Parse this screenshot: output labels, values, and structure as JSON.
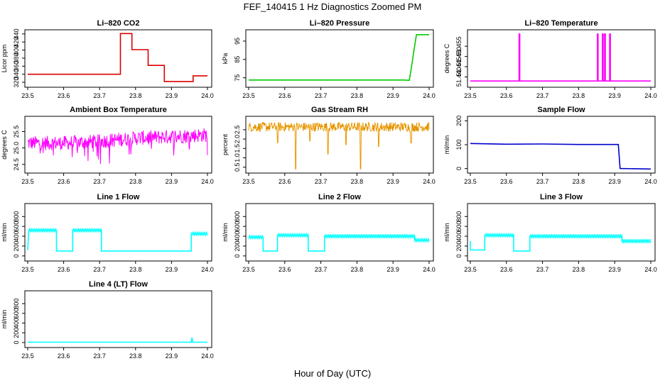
{
  "figure": {
    "title": "FEF_140415  1 Hz Diagnostics Zoomed PM",
    "xlabel": "Hour of Day (UTC)"
  },
  "chart_data": [
    {
      "type": "line",
      "title": "Li–820 CO2",
      "xlabel": "",
      "ylabel": "Licor ppm",
      "color": "#dd0000",
      "xlim": [
        23.5,
        24.0
      ],
      "ylim": [
        313,
        445
      ],
      "xticks": [
        "23.5",
        "23.6",
        "23.7",
        "23.8",
        "23.9",
        "24.0"
      ],
      "yticks": [
        "320",
        "340",
        "360",
        "380",
        "400",
        "420",
        "440"
      ],
      "x": [
        23.5,
        23.758,
        23.758,
        23.79,
        23.79,
        23.835,
        23.835,
        23.88,
        23.88,
        23.96,
        23.96,
        24.0
      ],
      "y": [
        340,
        340,
        441,
        441,
        401,
        401,
        362,
        362,
        322,
        322,
        336,
        336
      ]
    },
    {
      "type": "line",
      "title": "Li–820 Pressure",
      "xlabel": "",
      "ylabel": "kPa",
      "color": "#00cc00",
      "xlim": [
        23.5,
        24.0
      ],
      "ylim": [
        71,
        100
      ],
      "xticks": [
        "23.5",
        "23.6",
        "23.7",
        "23.8",
        "23.9",
        "24.0"
      ],
      "yticks": [
        "75",
        "85",
        "95"
      ],
      "x": [
        23.5,
        23.93,
        23.945,
        23.952,
        23.958,
        23.962,
        23.965,
        24.0
      ],
      "y": [
        73.8,
        73.8,
        73.6,
        82,
        90,
        95,
        98.5,
        98.5
      ]
    },
    {
      "type": "line",
      "title": "Li–820 Temperature",
      "xlabel": "",
      "ylabel": "degrees C",
      "color": "#ff00ff",
      "xlim": [
        23.5,
        24.0
      ],
      "ylim": [
        51.436,
        51.462
      ],
      "xticks": [
        "23.5",
        "23.6",
        "23.7",
        "23.8",
        "23.9",
        "24.0"
      ],
      "yticks": [
        "51.440",
        "51.445",
        "51.450",
        "51.455"
      ],
      "x": [
        23.5,
        23.635,
        23.635,
        23.637,
        23.637,
        23.852,
        23.852,
        23.854,
        23.854,
        23.866,
        23.866,
        23.868,
        23.868,
        23.872,
        23.872,
        23.874,
        23.874,
        23.886,
        23.886,
        23.888,
        23.888,
        24.0
      ],
      "y": [
        51.438,
        51.438,
        51.461,
        51.461,
        51.438,
        51.438,
        51.461,
        51.461,
        51.438,
        51.438,
        51.461,
        51.461,
        51.438,
        51.438,
        51.461,
        51.461,
        51.438,
        51.438,
        51.461,
        51.461,
        51.438,
        51.438
      ]
    },
    {
      "type": "line",
      "title": "Ambient Box Temperature",
      "xlabel": "",
      "ylabel": "degrees C",
      "color": "#ff00ff",
      "xlim": [
        23.5,
        24.0
      ],
      "ylim": [
        24.3,
        25.9
      ],
      "xticks": [
        "23.5",
        "23.6",
        "23.7",
        "23.8",
        "23.9",
        "24.0"
      ],
      "yticks": [
        "24.5",
        "25.0",
        "25.5"
      ],
      "x": [
        23.5,
        23.6,
        23.7,
        23.8,
        23.9,
        24.0
      ],
      "y": [
        25.15,
        25.15,
        25.2,
        25.3,
        25.35,
        25.4
      ],
      "noise": 0.22
    },
    {
      "type": "line",
      "title": "Gas Stream RH",
      "xlabel": "",
      "ylabel": "percent",
      "color": "#ffa500",
      "xlim": [
        23.5,
        24.0
      ],
      "ylim": [
        0.3,
        3.1
      ],
      "xticks": [
        "23.5",
        "23.6",
        "23.7",
        "23.8",
        "23.9",
        "24.0"
      ],
      "yticks": [
        "0.5",
        "1.0",
        "1.5",
        "2.0",
        "2.5"
      ],
      "x": [
        23.5,
        23.63,
        23.63,
        23.72,
        23.72,
        23.81,
        23.81,
        24.0
      ],
      "y": [
        2.65,
        2.65,
        0.4,
        2.65,
        1.2,
        2.65,
        0.4,
        2.65
      ],
      "noise": 0.25
    },
    {
      "type": "line",
      "title": "Sample Flow",
      "xlabel": "",
      "ylabel": "ml/min",
      "color": "#0000cc",
      "xlim": [
        23.5,
        24.0
      ],
      "ylim": [
        -10,
        210
      ],
      "xticks": [
        "23.5",
        "23.6",
        "23.7",
        "23.8",
        "23.9",
        "24.0"
      ],
      "yticks": [
        "0",
        "100",
        "200"
      ],
      "x": [
        23.5,
        23.6,
        23.7,
        23.8,
        23.91,
        23.915,
        24.0
      ],
      "y": [
        105,
        102,
        103,
        101,
        101,
        0,
        -2
      ]
    },
    {
      "type": "line",
      "title": "Line 1 Flow",
      "xlabel": "",
      "ylabel": "ml/min",
      "color": "#00ffff",
      "xlim": [
        23.5,
        24.0
      ],
      "ylim": [
        -60,
        1020
      ],
      "xticks": [
        "23.5",
        "23.6",
        "23.7",
        "23.8",
        "23.9",
        "24.0"
      ],
      "yticks": [
        "0",
        "200",
        "400",
        "600",
        "800"
      ],
      "x": [
        23.5,
        23.503,
        23.58,
        23.58,
        23.625,
        23.625,
        23.705,
        23.705,
        23.955,
        23.955,
        24.0
      ],
      "y": [
        120,
        520,
        520,
        100,
        100,
        520,
        520,
        100,
        100,
        450,
        450
      ]
    },
    {
      "type": "line",
      "title": "Line 2 Flow",
      "xlabel": "",
      "ylabel": "ml/min",
      "color": "#00ffff",
      "xlim": [
        23.5,
        24.0
      ],
      "ylim": [
        -60,
        1020
      ],
      "xticks": [
        "23.5",
        "23.6",
        "23.7",
        "23.8",
        "23.9",
        "24.0"
      ],
      "yticks": [
        "0",
        "200",
        "400",
        "600",
        "800"
      ],
      "x": [
        23.5,
        23.54,
        23.54,
        23.58,
        23.58,
        23.665,
        23.665,
        23.71,
        23.71,
        23.96,
        23.96,
        24.0
      ],
      "y": [
        380,
        380,
        100,
        100,
        420,
        420,
        100,
        100,
        400,
        400,
        320,
        320
      ]
    },
    {
      "type": "line",
      "title": "Line 3 Flow",
      "xlabel": "",
      "ylabel": "ml/min",
      "color": "#00ffff",
      "xlim": [
        23.5,
        24.0
      ],
      "ylim": [
        -60,
        1020
      ],
      "xticks": [
        "23.5",
        "23.6",
        "23.7",
        "23.8",
        "23.9",
        "24.0"
      ],
      "yticks": [
        "0",
        "200",
        "400",
        "600",
        "800"
      ],
      "x": [
        23.5,
        23.5,
        23.54,
        23.54,
        23.62,
        23.62,
        23.665,
        23.665,
        23.92,
        23.92,
        24.0
      ],
      "y": [
        300,
        120,
        120,
        420,
        420,
        100,
        100,
        400,
        400,
        300,
        300
      ]
    },
    {
      "type": "line",
      "title": "Line 4 (LT) Flow",
      "xlabel": "",
      "ylabel": "ml/min",
      "color": "#00ffff",
      "xlim": [
        23.5,
        24.0
      ],
      "ylim": [
        -60,
        1020
      ],
      "xticks": [
        "23.5",
        "23.6",
        "23.7",
        "23.8",
        "23.9",
        "24.0"
      ],
      "yticks": [
        "0",
        "200",
        "400",
        "600",
        "800"
      ],
      "x": [
        23.5,
        23.955,
        23.957,
        23.959,
        23.962,
        24.0
      ],
      "y": [
        5,
        5,
        100,
        10,
        5,
        5
      ]
    }
  ]
}
